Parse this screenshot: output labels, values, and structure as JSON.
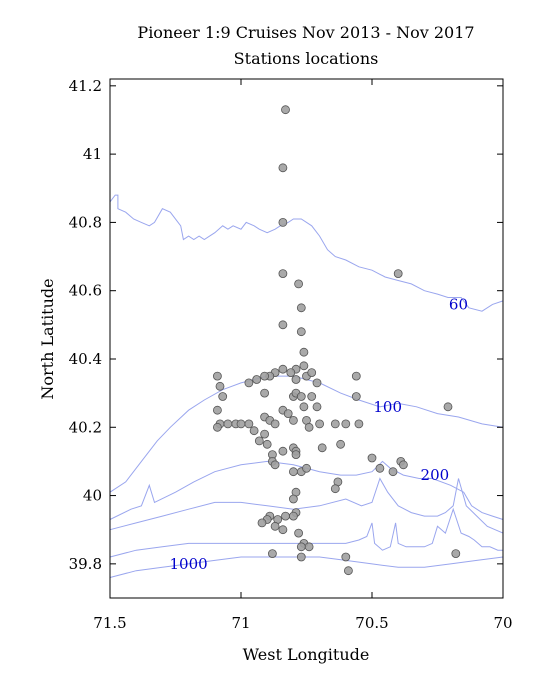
{
  "chart_data": {
    "type": "scatter",
    "title": "Pioneer 1:9 Cruises Nov 2013 - Nov 2017",
    "subtitle": "Stations locations",
    "xlabel": "West Longitude",
    "ylabel": "North Latitude",
    "xlim": [
      71.5,
      70.0
    ],
    "ylim": [
      39.7,
      41.22
    ],
    "x_ticks": [
      71.5,
      71.0,
      70.5,
      70.0
    ],
    "x_tick_labels": [
      "71.5",
      "71",
      "70.5",
      "70"
    ],
    "y_ticks": [
      39.8,
      40.0,
      40.2,
      40.4,
      40.6,
      40.8,
      41.0,
      41.2
    ],
    "y_tick_labels": [
      "39.8",
      "40",
      "40.2",
      "40.4",
      "40.6",
      "40.8",
      "41",
      "41.2"
    ],
    "grid": false,
    "marker_color": "#a0a0a0",
    "marker_edge_color": "#555555",
    "contour_color": "#9aa6ee",
    "contour_label_color": "#0000cc",
    "contours": [
      {
        "label": "60",
        "label_at": [
          70.17,
          40.56
        ],
        "points": [
          [
            71.5,
            40.86
          ],
          [
            71.48,
            40.88
          ],
          [
            71.47,
            40.88
          ],
          [
            71.47,
            40.84
          ],
          [
            71.44,
            40.83
          ],
          [
            71.41,
            40.81
          ],
          [
            71.38,
            40.8
          ],
          [
            71.35,
            40.79
          ],
          [
            71.33,
            40.8
          ],
          [
            71.3,
            40.84
          ],
          [
            71.27,
            40.83
          ],
          [
            71.24,
            40.8
          ],
          [
            71.23,
            40.79
          ],
          [
            71.22,
            40.75
          ],
          [
            71.2,
            40.76
          ],
          [
            71.18,
            40.75
          ],
          [
            71.16,
            40.76
          ],
          [
            71.14,
            40.75
          ],
          [
            71.12,
            40.76
          ],
          [
            71.1,
            40.77
          ],
          [
            71.07,
            40.79
          ],
          [
            71.05,
            40.78
          ],
          [
            71.03,
            40.79
          ],
          [
            71.0,
            40.78
          ],
          [
            70.98,
            40.8
          ],
          [
            70.95,
            40.79
          ],
          [
            70.93,
            40.78
          ],
          [
            70.9,
            40.77
          ],
          [
            70.87,
            40.78
          ],
          [
            70.85,
            40.79
          ],
          [
            70.82,
            40.8
          ],
          [
            70.8,
            40.81
          ],
          [
            70.77,
            40.81
          ],
          [
            70.73,
            40.79
          ],
          [
            70.7,
            40.76
          ],
          [
            70.67,
            40.72
          ],
          [
            70.64,
            40.7
          ],
          [
            70.6,
            40.69
          ],
          [
            70.55,
            40.67
          ],
          [
            70.5,
            40.66
          ],
          [
            70.45,
            40.64
          ],
          [
            70.4,
            40.63
          ],
          [
            70.35,
            40.62
          ],
          [
            70.3,
            40.6
          ],
          [
            70.25,
            40.59
          ],
          [
            70.21,
            40.58
          ],
          [
            70.16,
            40.58
          ],
          [
            70.13,
            40.55
          ],
          [
            70.08,
            40.54
          ],
          [
            70.04,
            40.56
          ],
          [
            70.0,
            40.57
          ]
        ]
      },
      {
        "label": "100",
        "label_at": [
          70.44,
          40.26
        ],
        "points": [
          [
            71.5,
            40.01
          ],
          [
            71.44,
            40.04
          ],
          [
            71.38,
            40.1
          ],
          [
            71.32,
            40.16
          ],
          [
            71.27,
            40.2
          ],
          [
            71.2,
            40.25
          ],
          [
            71.14,
            40.28
          ],
          [
            71.07,
            40.31
          ],
          [
            71.0,
            40.33
          ],
          [
            70.9,
            40.35
          ],
          [
            70.8,
            40.35
          ],
          [
            70.7,
            40.33
          ],
          [
            70.62,
            40.3
          ],
          [
            70.55,
            40.28
          ],
          [
            70.47,
            40.26
          ],
          [
            70.4,
            40.27
          ],
          [
            70.33,
            40.26
          ],
          [
            70.25,
            40.24
          ],
          [
            70.17,
            40.23
          ],
          [
            70.08,
            40.21
          ],
          [
            70.0,
            40.2
          ]
        ]
      },
      {
        "label": "200",
        "label_at": [
          70.26,
          40.06
        ],
        "points": [
          [
            71.5,
            39.93
          ],
          [
            71.42,
            39.96
          ],
          [
            71.38,
            39.97
          ],
          [
            71.35,
            40.03
          ],
          [
            71.33,
            39.98
          ],
          [
            71.25,
            40.01
          ],
          [
            71.18,
            40.04
          ],
          [
            71.1,
            40.07
          ],
          [
            71.0,
            40.09
          ],
          [
            70.9,
            40.1
          ],
          [
            70.8,
            40.09
          ],
          [
            70.7,
            40.07
          ],
          [
            70.62,
            40.06
          ],
          [
            70.56,
            40.06
          ],
          [
            70.5,
            40.07
          ],
          [
            70.46,
            40.1
          ],
          [
            70.43,
            40.08
          ],
          [
            70.38,
            40.06
          ],
          [
            70.32,
            40.05
          ],
          [
            70.27,
            40.05
          ],
          [
            70.2,
            40.03
          ],
          [
            70.15,
            40.01
          ],
          [
            70.12,
            39.97
          ],
          [
            70.08,
            39.95
          ],
          [
            70.04,
            39.94
          ],
          [
            70.0,
            39.93
          ]
        ]
      },
      {
        "label": "",
        "label_at": null,
        "points": [
          [
            71.5,
            39.9
          ],
          [
            71.4,
            39.92
          ],
          [
            71.3,
            39.94
          ],
          [
            71.2,
            39.96
          ],
          [
            71.1,
            39.98
          ],
          [
            71.0,
            39.98
          ],
          [
            70.9,
            39.97
          ],
          [
            70.8,
            39.96
          ],
          [
            70.7,
            39.97
          ],
          [
            70.6,
            39.99
          ],
          [
            70.54,
            39.97
          ],
          [
            70.5,
            39.98
          ],
          [
            70.47,
            40.05
          ],
          [
            70.44,
            40.01
          ],
          [
            70.4,
            39.97
          ],
          [
            70.35,
            39.95
          ],
          [
            70.3,
            39.94
          ],
          [
            70.25,
            39.94
          ],
          [
            70.22,
            39.95
          ],
          [
            70.19,
            39.97
          ],
          [
            70.17,
            40.05
          ],
          [
            70.14,
            39.97
          ],
          [
            70.1,
            39.94
          ],
          [
            70.06,
            39.91
          ],
          [
            70.03,
            39.9
          ],
          [
            70.0,
            39.89
          ]
        ]
      },
      {
        "label": "",
        "label_at": null,
        "points": [
          [
            71.5,
            39.82
          ],
          [
            71.4,
            39.84
          ],
          [
            71.3,
            39.85
          ],
          [
            71.2,
            39.86
          ],
          [
            71.1,
            39.86
          ],
          [
            71.0,
            39.86
          ],
          [
            70.9,
            39.86
          ],
          [
            70.8,
            39.86
          ],
          [
            70.7,
            39.86
          ],
          [
            70.6,
            39.86
          ],
          [
            70.55,
            39.87
          ],
          [
            70.52,
            39.88
          ],
          [
            70.5,
            39.92
          ],
          [
            70.49,
            39.86
          ],
          [
            70.46,
            39.84
          ],
          [
            70.43,
            39.85
          ],
          [
            70.41,
            39.92
          ],
          [
            70.4,
            39.86
          ],
          [
            70.37,
            39.85
          ],
          [
            70.3,
            39.85
          ],
          [
            70.27,
            39.86
          ],
          [
            70.25,
            39.91
          ],
          [
            70.22,
            39.89
          ],
          [
            70.19,
            39.96
          ],
          [
            70.16,
            39.89
          ],
          [
            70.13,
            39.88
          ],
          [
            70.11,
            39.87
          ],
          [
            70.08,
            39.85
          ],
          [
            70.05,
            39.85
          ],
          [
            70.02,
            39.84
          ],
          [
            70.0,
            39.84
          ]
        ]
      },
      {
        "label": "1000",
        "label_at": [
          71.2,
          39.8
        ],
        "points": [
          [
            71.5,
            39.76
          ],
          [
            71.4,
            39.78
          ],
          [
            71.3,
            39.79
          ],
          [
            71.2,
            39.8
          ],
          [
            71.1,
            39.81
          ],
          [
            71.0,
            39.82
          ],
          [
            70.9,
            39.82
          ],
          [
            70.8,
            39.82
          ],
          [
            70.7,
            39.82
          ],
          [
            70.6,
            39.81
          ],
          [
            70.5,
            39.8
          ],
          [
            70.4,
            39.79
          ],
          [
            70.3,
            39.79
          ],
          [
            70.2,
            39.8
          ],
          [
            70.1,
            39.81
          ],
          [
            70.0,
            39.82
          ]
        ]
      }
    ],
    "series": [
      {
        "points": [
          [
            70.83,
            41.13
          ],
          [
            70.84,
            40.96
          ],
          [
            70.84,
            40.8
          ],
          [
            70.84,
            40.65
          ],
          [
            70.84,
            40.5
          ],
          [
            70.78,
            40.62
          ],
          [
            70.77,
            40.55
          ],
          [
            70.77,
            40.48
          ],
          [
            70.76,
            40.42
          ],
          [
            70.76,
            40.38
          ],
          [
            70.79,
            40.37
          ],
          [
            70.81,
            40.36
          ],
          [
            70.84,
            40.37
          ],
          [
            70.87,
            40.36
          ],
          [
            70.89,
            40.35
          ],
          [
            70.91,
            40.35
          ],
          [
            70.94,
            40.34
          ],
          [
            70.97,
            40.33
          ],
          [
            70.79,
            40.34
          ],
          [
            70.75,
            40.35
          ],
          [
            70.73,
            40.36
          ],
          [
            70.71,
            40.33
          ],
          [
            70.56,
            40.35
          ],
          [
            70.4,
            40.65
          ],
          [
            71.09,
            40.35
          ],
          [
            71.08,
            40.32
          ],
          [
            71.07,
            40.29
          ],
          [
            71.09,
            40.25
          ],
          [
            71.08,
            40.21
          ],
          [
            71.05,
            40.21
          ],
          [
            71.02,
            40.21
          ],
          [
            71.0,
            40.21
          ],
          [
            70.97,
            40.21
          ],
          [
            70.95,
            40.19
          ],
          [
            70.91,
            40.3
          ],
          [
            70.91,
            40.23
          ],
          [
            70.89,
            40.22
          ],
          [
            70.91,
            40.18
          ],
          [
            70.9,
            40.15
          ],
          [
            70.93,
            40.16
          ],
          [
            70.87,
            40.21
          ],
          [
            70.84,
            40.25
          ],
          [
            70.82,
            40.24
          ],
          [
            70.8,
            40.22
          ],
          [
            70.8,
            40.29
          ],
          [
            70.79,
            40.3
          ],
          [
            70.77,
            40.29
          ],
          [
            70.76,
            40.26
          ],
          [
            70.75,
            40.22
          ],
          [
            70.74,
            40.2
          ],
          [
            70.73,
            40.29
          ],
          [
            70.71,
            40.26
          ],
          [
            70.7,
            40.21
          ],
          [
            70.64,
            40.21
          ],
          [
            70.6,
            40.21
          ],
          [
            70.55,
            40.21
          ],
          [
            70.56,
            40.29
          ],
          [
            70.62,
            40.15
          ],
          [
            70.88,
            40.12
          ],
          [
            70.88,
            40.1
          ],
          [
            70.87,
            40.09
          ],
          [
            70.84,
            40.13
          ],
          [
            70.8,
            40.14
          ],
          [
            70.79,
            40.13
          ],
          [
            70.79,
            40.12
          ],
          [
            70.8,
            40.07
          ],
          [
            70.77,
            40.07
          ],
          [
            70.75,
            40.08
          ],
          [
            70.69,
            40.14
          ],
          [
            70.63,
            40.04
          ],
          [
            70.64,
            40.02
          ],
          [
            70.5,
            40.11
          ],
          [
            70.47,
            40.08
          ],
          [
            70.42,
            40.07
          ],
          [
            70.39,
            40.1
          ],
          [
            70.38,
            40.09
          ],
          [
            70.21,
            40.26
          ],
          [
            70.79,
            40.01
          ],
          [
            70.8,
            39.99
          ],
          [
            70.79,
            39.95
          ],
          [
            70.8,
            39.94
          ],
          [
            70.83,
            39.94
          ],
          [
            70.86,
            39.93
          ],
          [
            70.89,
            39.94
          ],
          [
            70.9,
            39.93
          ],
          [
            70.92,
            39.92
          ],
          [
            70.87,
            39.91
          ],
          [
            70.84,
            39.9
          ],
          [
            70.78,
            39.89
          ],
          [
            70.76,
            39.86
          ],
          [
            70.74,
            39.85
          ],
          [
            70.77,
            39.85
          ],
          [
            70.88,
            39.83
          ],
          [
            70.77,
            39.82
          ],
          [
            70.6,
            39.82
          ],
          [
            70.59,
            39.78
          ],
          [
            70.18,
            39.83
          ],
          [
            71.09,
            40.2
          ]
        ]
      }
    ]
  }
}
